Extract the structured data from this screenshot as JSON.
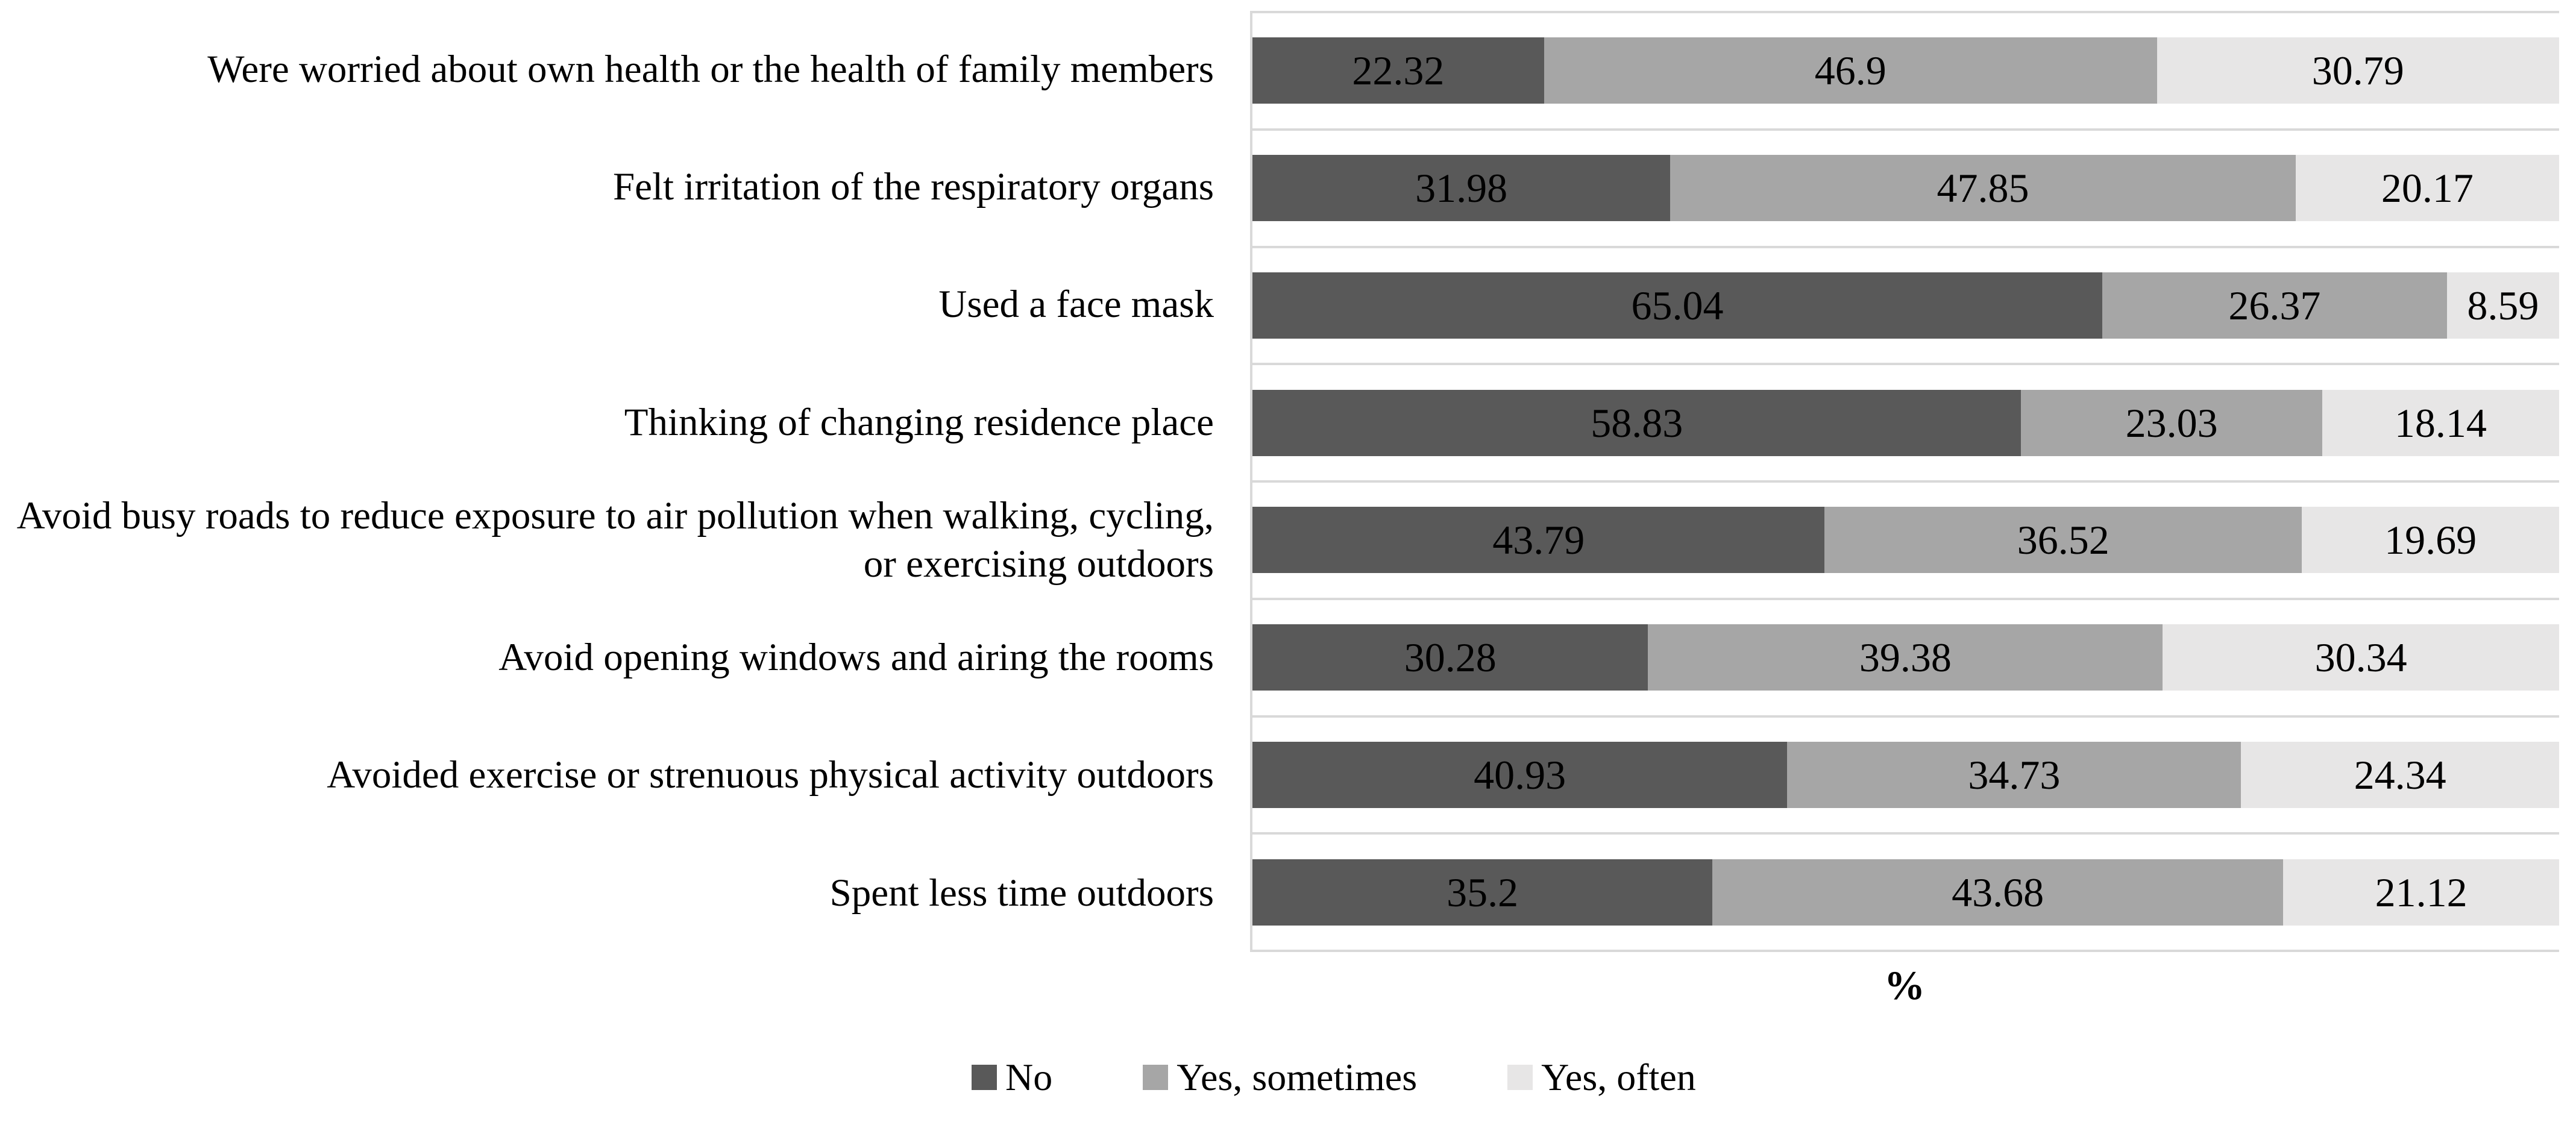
{
  "chart_data": {
    "type": "bar",
    "orientation": "horizontal",
    "stacked": true,
    "unit": "percent",
    "title": "",
    "xlabel": "%",
    "ylabel": "",
    "xlim": [
      0,
      100
    ],
    "grid": "category-separators-only",
    "legend_position": "bottom",
    "categories": [
      "Were worried about own health or the health of family members",
      "Felt irritation of the respiratory organs",
      "Used a face mask",
      "Thinking of changing residence place",
      "Avoid busy roads to reduce exposure to air pollution when walking, cycling, or exercising outdoors",
      "Avoid opening windows and airing the rooms",
      "Avoided exercise or strenuous physical activity outdoors",
      "Spent less time outdoors"
    ],
    "series": [
      {
        "name": "No",
        "color": "#595959",
        "values": [
          22.32,
          31.98,
          65.04,
          58.83,
          43.79,
          30.28,
          40.93,
          35.2
        ]
      },
      {
        "name": "Yes, sometimes",
        "color": "#a6a6a6",
        "values": [
          46.9,
          47.85,
          26.37,
          23.03,
          36.52,
          39.38,
          34.73,
          43.68
        ]
      },
      {
        "name": "Yes, often",
        "color": "#e7e6e6",
        "values": [
          30.79,
          20.17,
          8.59,
          18.14,
          19.69,
          30.34,
          24.34,
          21.12
        ]
      }
    ],
    "colors": {
      "plot_border": "#d9d9d9",
      "gridline": "#d9d9d9",
      "value_text": "#000000",
      "background": "#ffffff"
    }
  }
}
